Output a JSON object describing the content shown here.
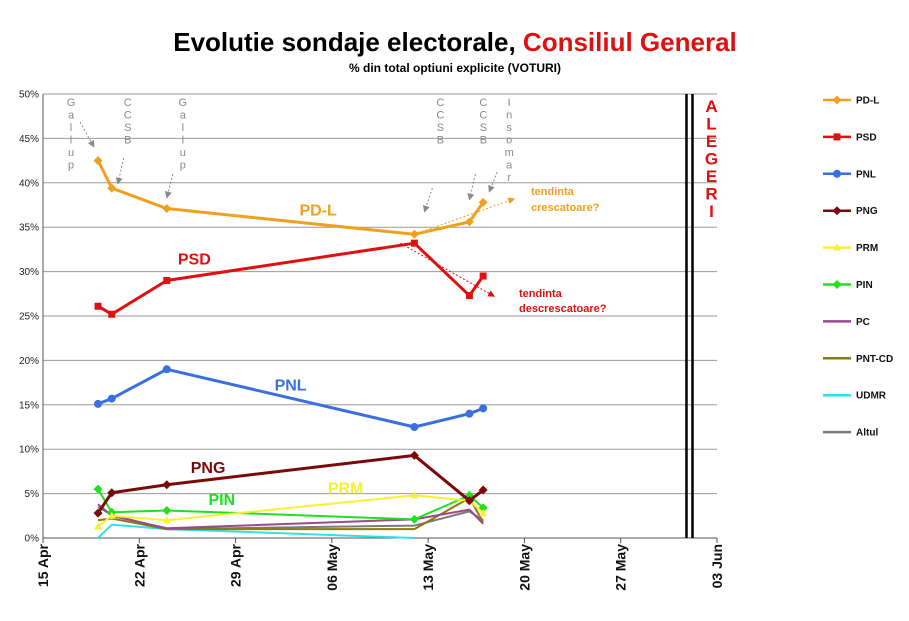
{
  "chart_data": {
    "type": "line",
    "title": "Evolutie sondaje electorale, ",
    "title_highlight": "Consiliul General",
    "title_color": "#000000",
    "title_highlight_color": "#e01010",
    "subtitle": "% din total optiuni explicite (VOTURI)",
    "x_type": "date",
    "x_ticks": [
      "15 Apr",
      "22 Apr",
      "29 Apr",
      "06 May",
      "13 May",
      "20 May",
      "27 May",
      "03 Jun"
    ],
    "x_tick_dates": [
      "2008-04-15",
      "2008-04-22",
      "2008-04-29",
      "2008-05-06",
      "2008-05-13",
      "2008-05-20",
      "2008-05-27",
      "2008-06-03"
    ],
    "xlim": [
      "2008-04-15",
      "2008-06-03"
    ],
    "ylim": [
      0,
      50
    ],
    "y_ticks": [
      0,
      5,
      10,
      15,
      20,
      25,
      30,
      35,
      40,
      45,
      50
    ],
    "y_tick_labels": [
      "0%",
      "5%",
      "10%",
      "15%",
      "20%",
      "25%",
      "30%",
      "35%",
      "40%",
      "45%",
      "50%"
    ],
    "grid": "horizontal",
    "legend_position": "right",
    "series": [
      {
        "name": "PD-L",
        "color": "#f0a020",
        "marker": "diamond",
        "label": "PD-L",
        "x": [
          "2008-04-19",
          "2008-04-20",
          "2008-04-24",
          "2008-05-12",
          "2008-05-16",
          "2008-05-17"
        ],
        "values": [
          42.5,
          39.4,
          37.1,
          34.2,
          35.6,
          37.8
        ]
      },
      {
        "name": "PSD",
        "color": "#e01010",
        "marker": "square",
        "label": "PSD",
        "x": [
          "2008-04-19",
          "2008-04-20",
          "2008-04-24",
          "2008-05-12",
          "2008-05-16",
          "2008-05-17"
        ],
        "values": [
          26.1,
          25.2,
          29.0,
          33.2,
          27.3,
          29.5
        ]
      },
      {
        "name": "PNL",
        "color": "#3a6fe0",
        "marker": "circle",
        "label": "PNL",
        "x": [
          "2008-04-19",
          "2008-04-20",
          "2008-04-24",
          "2008-05-12",
          "2008-05-16",
          "2008-05-17"
        ],
        "values": [
          15.1,
          15.7,
          19.0,
          12.5,
          14.0,
          14.6
        ]
      },
      {
        "name": "PNG",
        "color": "#7a0a0a",
        "marker": "diamond",
        "label": "PNG",
        "x": [
          "2008-04-19",
          "2008-04-20",
          "2008-04-24",
          "2008-05-12",
          "2008-05-16",
          "2008-05-17"
        ],
        "values": [
          2.8,
          5.1,
          6.0,
          9.3,
          4.2,
          5.4
        ]
      },
      {
        "name": "PRM",
        "color": "#f8f030",
        "marker": "triangle",
        "label": "PRM",
        "x": [
          "2008-04-19",
          "2008-04-20",
          "2008-04-24",
          "2008-05-12",
          "2008-05-16",
          "2008-05-17"
        ],
        "values": [
          1.3,
          2.5,
          2.0,
          4.8,
          4.2,
          2.8
        ]
      },
      {
        "name": "PIN",
        "color": "#20e020",
        "marker": "diamond",
        "label": "PIN",
        "x": [
          "2008-04-19",
          "2008-04-20",
          "2008-04-24",
          "2008-05-12",
          "2008-05-16",
          "2008-05-17"
        ],
        "values": [
          5.5,
          2.9,
          3.1,
          2.1,
          4.8,
          3.4
        ]
      },
      {
        "name": "PC",
        "color": "#9a4a8a",
        "marker": "none",
        "label": "",
        "x": [
          "2008-04-19",
          "2008-04-20",
          "2008-04-24",
          "2008-05-12",
          "2008-05-16",
          "2008-05-17"
        ],
        "values": [
          3.8,
          2.5,
          1.1,
          2.1,
          3.2,
          1.6
        ]
      },
      {
        "name": "PNT-CD",
        "color": "#8a7a10",
        "marker": "none",
        "label": "",
        "x": [
          "2008-04-19",
          "2008-04-20",
          "2008-04-24",
          "2008-05-12",
          "2008-05-16",
          "2008-05-17"
        ],
        "values": [
          2.0,
          2.2,
          1.0,
          1.0,
          4.5,
          1.8
        ]
      },
      {
        "name": "UDMR",
        "color": "#30e0f0",
        "marker": "none",
        "label": "",
        "x": [
          "2008-04-19",
          "2008-04-20",
          "2008-04-24",
          "2008-05-12"
        ],
        "values": [
          0.0,
          1.5,
          1.0,
          0.0
        ]
      },
      {
        "name": "Altul",
        "color": "#7a7a7a",
        "marker": "none",
        "label": "",
        "x": [
          "2008-04-19",
          "2008-04-20",
          "2008-04-24",
          "2008-05-12",
          "2008-05-16",
          "2008-05-17"
        ],
        "values": [
          3.5,
          2.6,
          1.0,
          1.4,
          3.0,
          2.0
        ]
      }
    ],
    "annotations": {
      "pollsters": [
        {
          "text": "Gallup",
          "date": "2008-04-19"
        },
        {
          "text": "CCSB",
          "date": "2008-04-20"
        },
        {
          "text": "Gallup",
          "date": "2008-04-24"
        },
        {
          "text": "CCSB",
          "date": "2008-05-12"
        },
        {
          "text": "CCSB",
          "date": "2008-05-16"
        },
        {
          "text": "Insomar",
          "date": "2008-05-17"
        }
      ],
      "trend_up": {
        "text_line1": "tendinta",
        "text_line2": "crescatoare?",
        "color": "#f0a020"
      },
      "trend_down": {
        "text_line1": "tendinta",
        "text_line2": "descrescatoare?",
        "color": "#e01010"
      },
      "election_marker": {
        "text": "ALEGERI",
        "date": "2008-06-01"
      }
    }
  }
}
